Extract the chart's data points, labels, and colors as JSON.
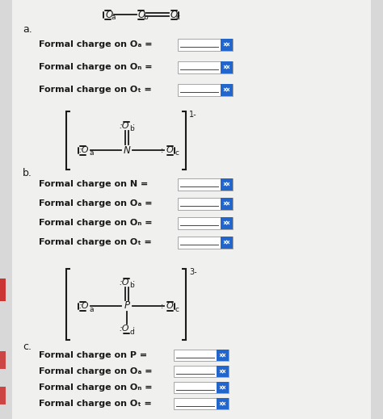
{
  "background_color": "#d8d8d8",
  "section_a_label": "a.",
  "section_b_label": "b.",
  "section_c_label": "c.",
  "lines_a": [
    "Formal charge on Oₐ =",
    "Formal charge on Oₙ =",
    "Formal charge on Oₜ ="
  ],
  "lines_b": [
    "Formal charge on N =",
    "Formal charge on Oₐ =",
    "Formal charge on Oₙ =",
    "Formal charge on Oₜ ="
  ],
  "lines_c": [
    "Formal charge on P =",
    "Formal charge on Oₐ =",
    "Formal charge on Oₙ =",
    "Formal charge on Oₜ ="
  ],
  "text_color": "#1a1a1a",
  "dot_color": "#1a1a1a",
  "bond_color": "#1a1a1a",
  "bracket_color": "#1a1a1a",
  "box_fill": "#ffffff",
  "box_edge": "#999999",
  "spinner_color": "#2266cc",
  "line_under_color": "#444444"
}
